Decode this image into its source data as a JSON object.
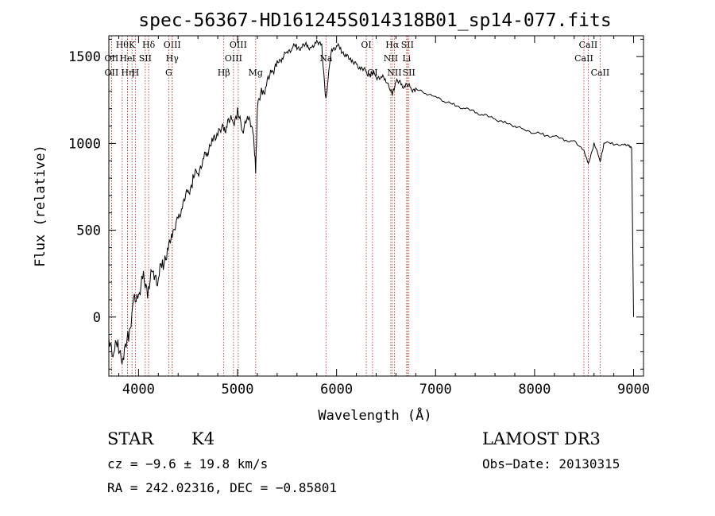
{
  "chart_data": {
    "type": "line",
    "title": "spec-56367-HD161245S014318B01_sp14-077.fits",
    "xlabel": "Wavelength (Å)",
    "ylabel": "Flux (relative)",
    "xlim": [
      3700,
      9100
    ],
    "ylim": [
      -340,
      1620
    ],
    "x_ticks": [
      4000,
      5000,
      6000,
      7000,
      8000,
      9000
    ],
    "y_ticks": [
      0,
      500,
      1000,
      1500
    ],
    "grid": false,
    "series": [
      {
        "name": "spectrum",
        "x": [
          3700,
          3750,
          3800,
          3850,
          3900,
          3950,
          4000,
          4050,
          4100,
          4150,
          4200,
          4250,
          4300,
          4340,
          4400,
          4450,
          4500,
          4550,
          4600,
          4650,
          4700,
          4750,
          4800,
          4861,
          4900,
          4950,
          5000,
          5050,
          5100,
          5150,
          5183,
          5200,
          5250,
          5300,
          5350,
          5400,
          5450,
          5500,
          5550,
          5600,
          5650,
          5700,
          5750,
          5800,
          5850,
          5893,
          5950,
          6000,
          6050,
          6100,
          6150,
          6200,
          6250,
          6300,
          6350,
          6400,
          6450,
          6500,
          6563,
          6600,
          6650,
          6700,
          6750,
          6800,
          6900,
          7000,
          7100,
          7200,
          7300,
          7400,
          7500,
          7600,
          7700,
          7800,
          7900,
          8000,
          8100,
          8200,
          8300,
          8400,
          8498,
          8542,
          8600,
          8662,
          8700,
          8800,
          8900,
          8950,
          8980,
          9000
        ],
        "y": [
          -120,
          -200,
          -160,
          -250,
          -100,
          80,
          120,
          230,
          150,
          280,
          210,
          330,
          390,
          480,
          560,
          650,
          720,
          790,
          840,
          900,
          960,
          1020,
          1060,
          1080,
          1110,
          1130,
          1170,
          1080,
          1150,
          1110,
          850,
          1200,
          1300,
          1340,
          1420,
          1460,
          1490,
          1530,
          1550,
          1560,
          1550,
          1570,
          1540,
          1590,
          1560,
          1250,
          1550,
          1560,
          1540,
          1500,
          1480,
          1450,
          1430,
          1410,
          1400,
          1390,
          1380,
          1370,
          1280,
          1360,
          1340,
          1330,
          1320,
          1310,
          1290,
          1270,
          1240,
          1220,
          1200,
          1180,
          1160,
          1140,
          1120,
          1100,
          1080,
          1060,
          1050,
          1040,
          1020,
          1010,
          960,
          880,
          1000,
          900,
          1000,
          1000,
          990,
          990,
          970,
          0
        ]
      }
    ],
    "line_markers": [
      {
        "wl": 3835,
        "label": "Hθ",
        "tier": 0
      },
      {
        "wl": 3727,
        "label": "OII",
        "tier": 1
      },
      {
        "wl": 3727,
        "label": "OII",
        "tier": 2
      },
      {
        "wl": 3889,
        "label": "Hη",
        "tier": 2
      },
      {
        "wl": 3934,
        "label": "K",
        "tier": 0
      },
      {
        "wl": 3968,
        "label": "H",
        "tier": 2
      },
      {
        "wl": 3889,
        "label": "HeI",
        "tier": 1
      },
      {
        "wl": 4068,
        "label": "SII",
        "tier": 1
      },
      {
        "wl": 4102,
        "label": "Hδ",
        "tier": 0
      },
      {
        "wl": 4340,
        "label": "OIII",
        "tier": 0
      },
      {
        "wl": 4340,
        "label": "Hγ",
        "tier": 1
      },
      {
        "wl": 4305,
        "label": "G",
        "tier": 2
      },
      {
        "wl": 4861,
        "label": "Hβ",
        "tier": 2
      },
      {
        "wl": 5007,
        "label": "OIII",
        "tier": 0
      },
      {
        "wl": 4959,
        "label": "OIII",
        "tier": 1
      },
      {
        "wl": 5183,
        "label": "Mg",
        "tier": 2
      },
      {
        "wl": 5893,
        "label": "Na",
        "tier": 1
      },
      {
        "wl": 6300,
        "label": "OI",
        "tier": 0
      },
      {
        "wl": 6363,
        "label": "OI",
        "tier": 2
      },
      {
        "wl": 6563,
        "label": "Hα",
        "tier": 0
      },
      {
        "wl": 6716,
        "label": "SII",
        "tier": 0
      },
      {
        "wl": 6548,
        "label": "NII",
        "tier": 1
      },
      {
        "wl": 6708,
        "label": "Li",
        "tier": 1
      },
      {
        "wl": 6584,
        "label": "NII",
        "tier": 2
      },
      {
        "wl": 6731,
        "label": "SII",
        "tier": 2
      },
      {
        "wl": 8542,
        "label": "CaII",
        "tier": 0
      },
      {
        "wl": 8498,
        "label": "CaII",
        "tier": 1
      },
      {
        "wl": 8662,
        "label": "CaII",
        "tier": 2
      }
    ]
  },
  "info": {
    "class_label": "STAR",
    "subclass": "K4",
    "survey": "LAMOST DR3",
    "cz": "cz = −9.6 ± 19.8 km/s",
    "obs_date": "Obs−Date: 20130315",
    "coords": "RA = 242.02316, DEC =  −0.85801"
  }
}
